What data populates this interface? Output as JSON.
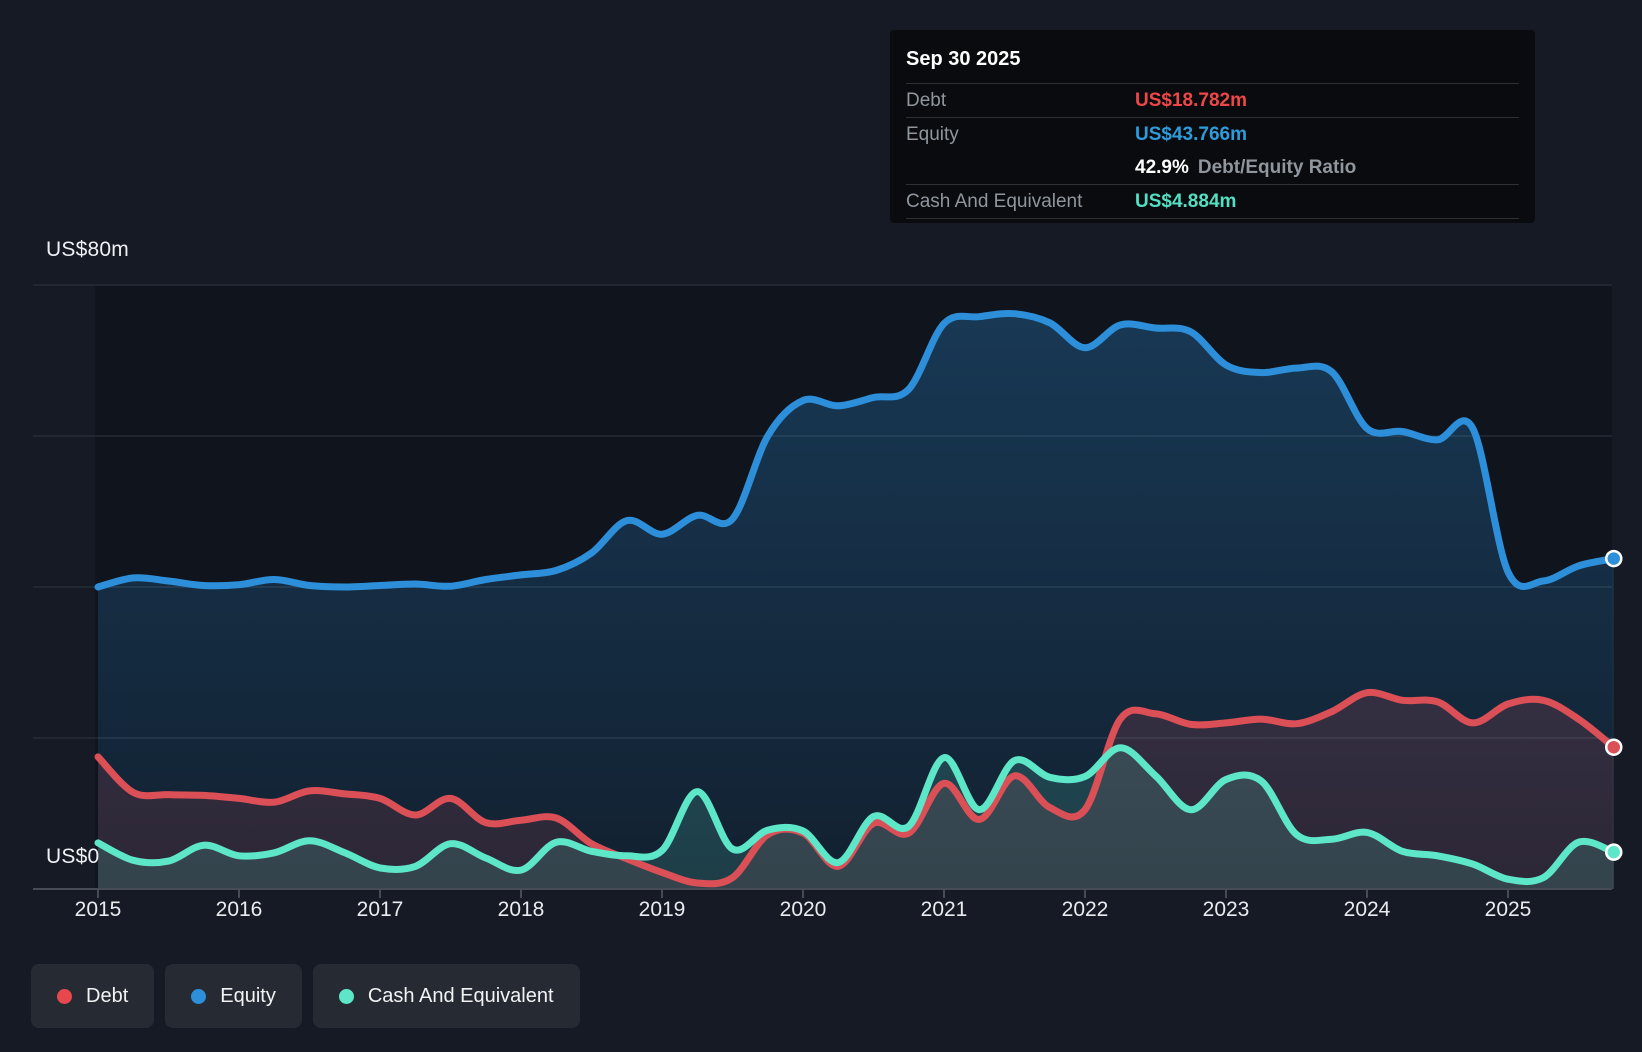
{
  "tooltip": {
    "date": "Sep 30 2025",
    "debt_label": "Debt",
    "debt_value": "US$18.782m",
    "debt_color": "#ef4748",
    "equity_label": "Equity",
    "equity_value": "US$43.766m",
    "equity_color": "#2d9cdb",
    "ratio_value": "42.9%",
    "ratio_label": "Debt/Equity Ratio",
    "cash_label": "Cash And Equivalent",
    "cash_value": "US$4.884m",
    "cash_color": "#52e0c2"
  },
  "axis": {
    "y_top_label": "US$80m",
    "y_zero_label": "US$0",
    "x_ticks": [
      "2015",
      "2016",
      "2017",
      "2018",
      "2019",
      "2020",
      "2021",
      "2022",
      "2023",
      "2024",
      "2025"
    ]
  },
  "legend": {
    "items": [
      {
        "label": "Debt",
        "color": "#e8474e"
      },
      {
        "label": "Equity",
        "color": "#2d8fd9"
      },
      {
        "label": "Cash And Equivalent",
        "color": "#5de6c8"
      }
    ]
  },
  "chart_data": {
    "type": "area",
    "title": "Debt to Equity History",
    "x_unit": "year",
    "ylim": [
      0,
      80
    ],
    "y_gridlines": [
      20,
      40,
      60,
      80
    ],
    "grid": true,
    "legend_position": "bottom-left",
    "x": [
      2015.0,
      2015.25,
      2015.5,
      2015.75,
      2016.0,
      2016.25,
      2016.5,
      2016.75,
      2017.0,
      2017.25,
      2017.5,
      2017.75,
      2018.0,
      2018.25,
      2018.5,
      2018.75,
      2019.0,
      2019.25,
      2019.5,
      2019.75,
      2020.0,
      2020.25,
      2020.5,
      2020.75,
      2021.0,
      2021.25,
      2021.5,
      2021.75,
      2022.0,
      2022.25,
      2022.5,
      2022.75,
      2023.0,
      2023.25,
      2023.5,
      2023.75,
      2024.0,
      2024.25,
      2024.5,
      2024.75,
      2025.0,
      2025.25,
      2025.5,
      2025.75
    ],
    "series": [
      {
        "name": "Equity",
        "color": "#2d8fd9",
        "fill_top": "rgba(45,143,217,0.30)",
        "fill_bottom": "rgba(45,143,217,0.10)",
        "values": [
          40.0,
          41.2,
          40.8,
          40.2,
          40.3,
          41.0,
          40.2,
          40.0,
          40.2,
          40.4,
          40.1,
          41.0,
          41.6,
          42.2,
          44.5,
          48.8,
          47.0,
          49.5,
          49.0,
          60.0,
          64.7,
          64.0,
          65.1,
          66.2,
          74.9,
          75.8,
          76.2,
          75.0,
          71.7,
          74.7,
          74.3,
          73.8,
          69.4,
          68.4,
          69.0,
          68.5,
          61.0,
          60.6,
          59.5,
          61.0,
          42.0,
          40.8,
          42.8,
          43.766
        ]
      },
      {
        "name": "Debt",
        "color": "#db4f56",
        "fill_top": "rgba(219,79,90,0.22)",
        "fill_bottom": "rgba(219,79,90,0.13)",
        "values": [
          17.5,
          12.8,
          12.5,
          12.4,
          12.0,
          11.5,
          13.0,
          12.6,
          12.0,
          9.8,
          12.0,
          8.8,
          9.1,
          9.4,
          6.0,
          4.0,
          2.2,
          0.8,
          1.5,
          7.2,
          7.4,
          3.0,
          8.7,
          7.4,
          14.0,
          9.2,
          15.0,
          10.8,
          10.5,
          22.5,
          23.2,
          21.8,
          22.0,
          22.5,
          21.9,
          23.5,
          26.0,
          25.0,
          24.8,
          22.0,
          24.5,
          25.0,
          22.5,
          18.782
        ]
      },
      {
        "name": "Cash And Equivalent",
        "color": "#5de6c8",
        "fill_top": "rgba(95,228,202,0.22)",
        "fill_bottom": "rgba(95,228,202,0.15)",
        "values": [
          6.1,
          3.8,
          3.7,
          5.8,
          4.4,
          4.8,
          6.4,
          4.8,
          2.8,
          3.0,
          6.0,
          4.1,
          2.5,
          6.2,
          5.0,
          4.4,
          5.1,
          12.9,
          5.3,
          7.8,
          7.7,
          3.5,
          9.6,
          8.3,
          17.4,
          10.5,
          17.0,
          14.8,
          14.9,
          18.7,
          15.0,
          10.5,
          14.5,
          14.3,
          7.2,
          6.6,
          7.5,
          5.0,
          4.4,
          3.3,
          1.3,
          1.5,
          6.2,
          4.884
        ]
      }
    ]
  }
}
